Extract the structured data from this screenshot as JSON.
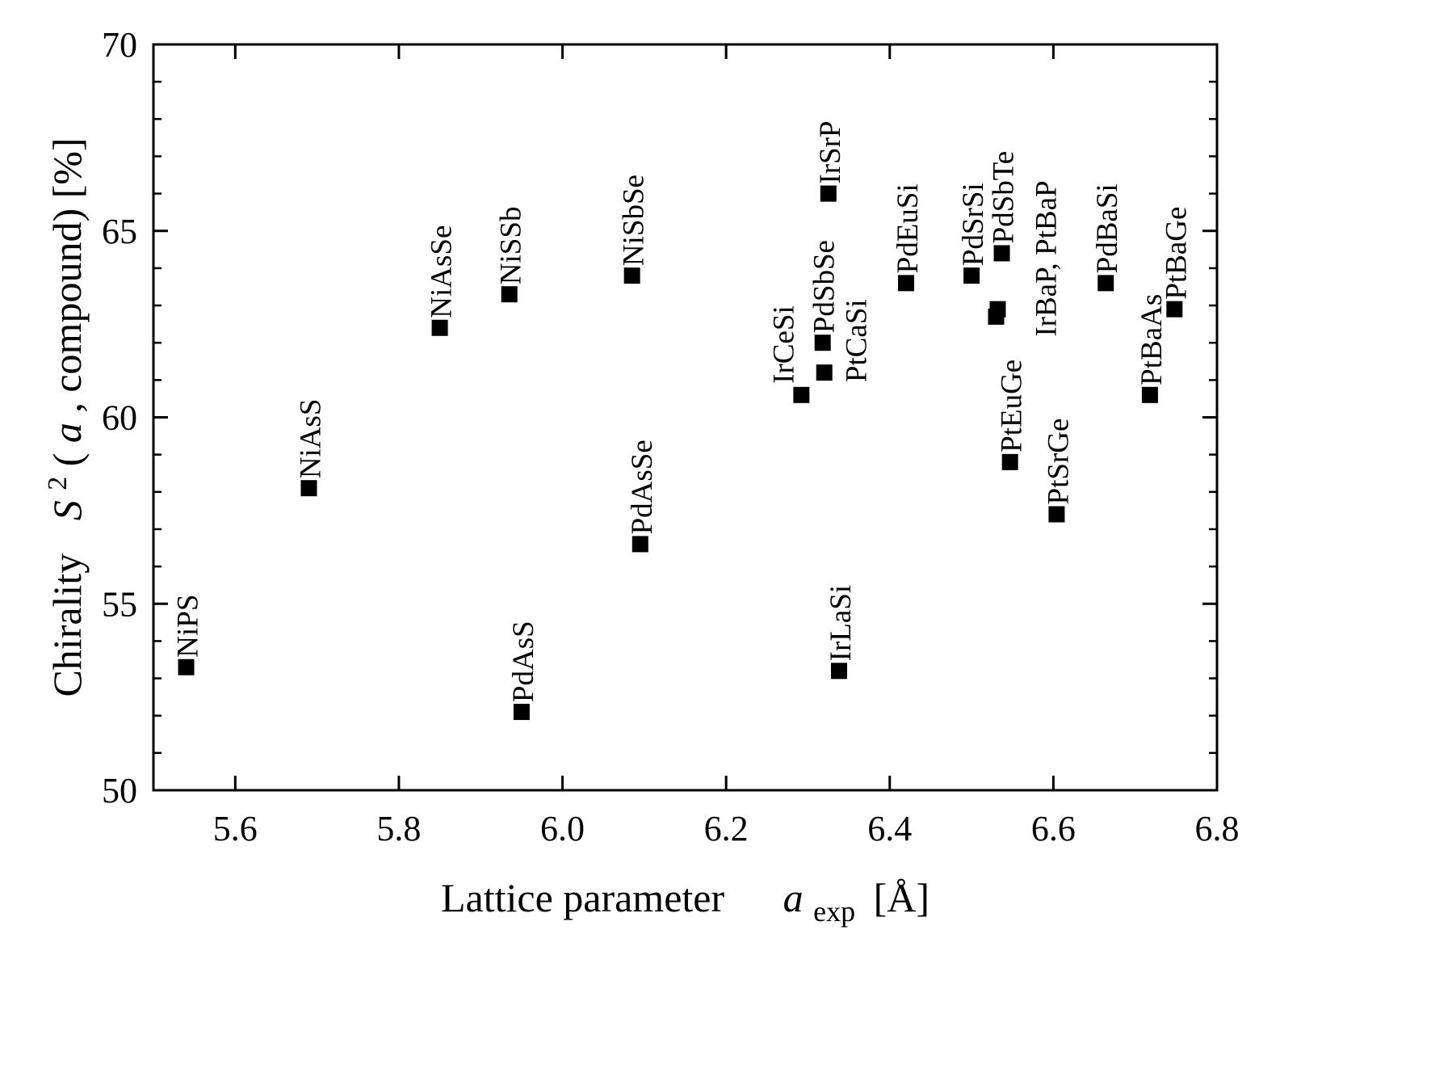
{
  "chart_data": {
    "type": "scatter",
    "title": "",
    "xlabel": {
      "main": "Lattice parameter",
      "var": "a",
      "sub": "exp",
      "unit": "[Å]"
    },
    "ylabel": {
      "prefix": "Chirality",
      "var": "S",
      "sup": "2",
      "open": "(",
      "arg": "a",
      "rest": ", compound) [%]"
    },
    "xlim": [
      5.5,
      6.8
    ],
    "ylim": [
      50,
      70
    ],
    "x_ticks": [
      5.6,
      5.8,
      6.0,
      6.2,
      6.4,
      6.6,
      6.8
    ],
    "x_tick_labels": [
      "5.6",
      "5.8",
      "6.0",
      "6.2",
      "6.4",
      "6.6",
      "6.8"
    ],
    "y_ticks": [
      50,
      55,
      60,
      65,
      70
    ],
    "y_tick_labels": [
      "50",
      "55",
      "60",
      "65",
      "70"
    ],
    "marker": "square",
    "marker_color": "#000000",
    "points": [
      {
        "x": 5.54,
        "y": 53.3,
        "label": "NiPS"
      },
      {
        "x": 5.69,
        "y": 58.1,
        "label": "NiAsS"
      },
      {
        "x": 5.85,
        "y": 62.4,
        "label": "NiAsSe"
      },
      {
        "x": 5.935,
        "y": 63.3,
        "label": "NiSSb"
      },
      {
        "x": 5.95,
        "y": 52.1,
        "label": "PdAsS"
      },
      {
        "x": 6.085,
        "y": 63.8,
        "label": "NiSbSe"
      },
      {
        "x": 6.095,
        "y": 56.6,
        "label": "PdAsSe"
      },
      {
        "x": 6.292,
        "y": 60.6,
        "label": "IrCeSi"
      },
      {
        "x": 6.318,
        "y": 62.0,
        "label": "PdSbSe"
      },
      {
        "x": 6.32,
        "y": 61.2,
        "label": "PtCaSi"
      },
      {
        "x": 6.325,
        "y": 66.0,
        "label": "IrSrP"
      },
      {
        "x": 6.338,
        "y": 53.2,
        "label": "IrLaSi"
      },
      {
        "x": 6.42,
        "y": 63.6,
        "label": "PdEuSi"
      },
      {
        "x": 6.5,
        "y": 63.8,
        "label": "PdSrSi"
      },
      {
        "x": 6.532,
        "y": 62.9,
        "label": "IrBaP, PtBaP"
      },
      {
        "x": 6.53,
        "y": 62.7,
        "label": ""
      },
      {
        "x": 6.537,
        "y": 64.4,
        "label": "PdSbTe"
      },
      {
        "x": 6.547,
        "y": 58.8,
        "label": "PtEuGe"
      },
      {
        "x": 6.604,
        "y": 57.4,
        "label": "PtSrGe"
      },
      {
        "x": 6.664,
        "y": 63.6,
        "label": "PdBaSi"
      },
      {
        "x": 6.718,
        "y": 60.6,
        "label": "PtBaAs"
      },
      {
        "x": 6.748,
        "y": 62.9,
        "label": "PtBaGe"
      }
    ]
  }
}
